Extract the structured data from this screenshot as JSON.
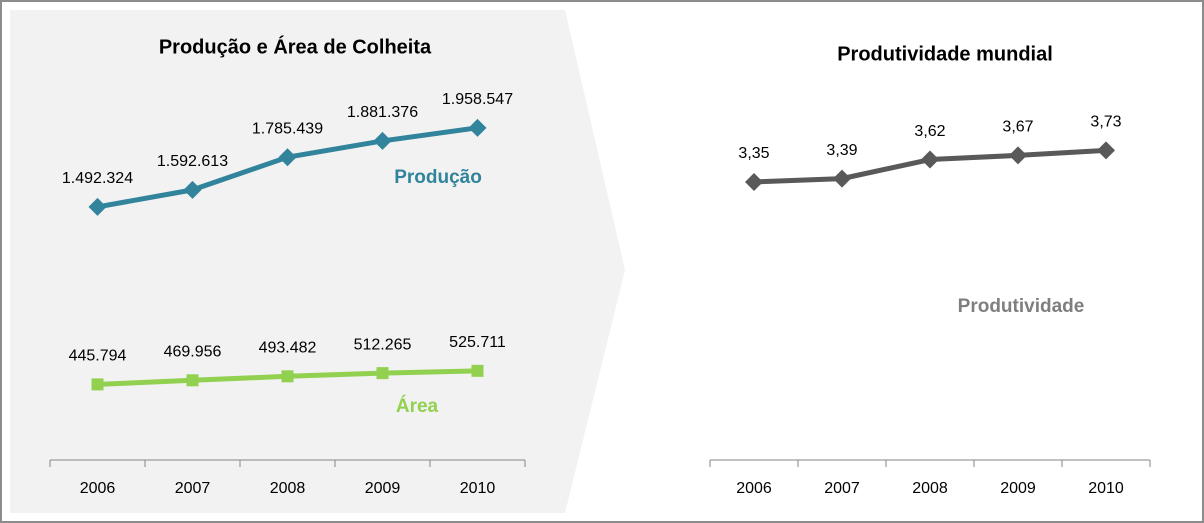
{
  "chart_data": [
    {
      "type": "line",
      "title": "Produção e Área de Colheita",
      "categories": [
        "2006",
        "2007",
        "2008",
        "2009",
        "2010"
      ],
      "ylim": [
        0,
        2500000
      ],
      "series": [
        {
          "name": "Produção",
          "color": "#31849b",
          "marker": "diamond",
          "values": [
            1492324,
            1592613,
            1785439,
            1881376,
            1958547
          ],
          "value_labels": [
            "1.492.324",
            "1.592.613",
            "1.785.439",
            "1.881.376",
            "1.958.547"
          ]
        },
        {
          "name": "Área",
          "color": "#92d050",
          "marker": "square",
          "values": [
            445794,
            469956,
            493482,
            512265,
            525711
          ],
          "value_labels": [
            "445.794",
            "469.956",
            "493.482",
            "512.265",
            "525.711"
          ]
        }
      ]
    },
    {
      "type": "line",
      "title": "Produtividade mundial",
      "categories": [
        "2006",
        "2007",
        "2008",
        "2009",
        "2010"
      ],
      "ylim": [
        0,
        5
      ],
      "series": [
        {
          "name": "Produtividade",
          "color": "#595959",
          "marker": "diamond",
          "values": [
            3.35,
            3.39,
            3.62,
            3.67,
            3.73
          ],
          "value_labels": [
            "3,35",
            "3,39",
            "3,62",
            "3,67",
            "3,73"
          ]
        }
      ]
    }
  ]
}
